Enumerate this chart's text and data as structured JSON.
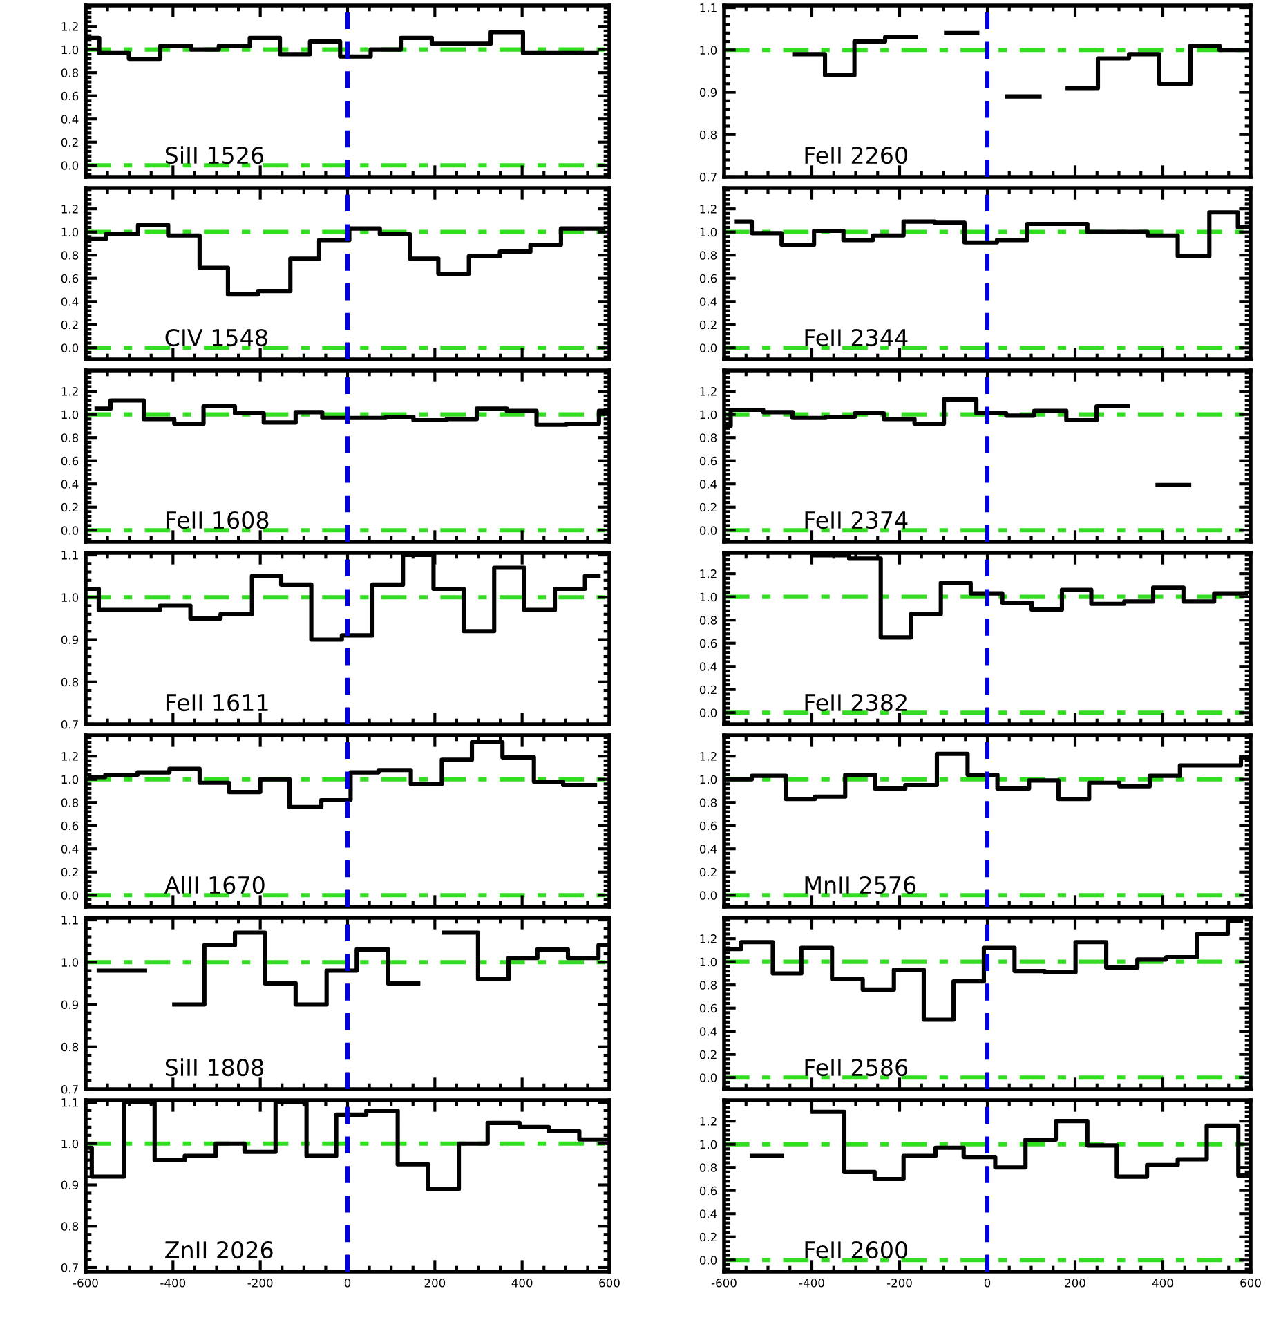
{
  "chart_data": [
    {
      "type": "step",
      "annotations": [
        "SiII 1526"
      ],
      "xlim": [
        -600,
        600
      ],
      "xticks": [
        -600,
        -400,
        -200,
        0,
        200,
        400,
        600
      ],
      "ylim": [
        -0.1,
        1.38
      ],
      "yticks": [
        {
          "value": 0,
          "label": "0.0"
        },
        {
          "value": 0.2,
          "label": "0.2"
        },
        {
          "value": 0.4,
          "label": "0.4"
        },
        {
          "value": 0.6,
          "label": "0.6"
        },
        {
          "value": 0.8,
          "label": "0.8"
        },
        {
          "value": 1,
          "label": "1.0"
        },
        {
          "value": 1.2,
          "label": "1.2"
        }
      ],
      "tick_labels": "y",
      "ref_lines": [
        {
          "axis": "y",
          "value": 1.0,
          "color": "#33dd22",
          "line_style": "dashdot"
        },
        {
          "axis": "y",
          "value": 0.0,
          "color": "#33dd22",
          "line_style": "dashdot"
        },
        {
          "axis": "x",
          "value": 0,
          "color": "#0000dd",
          "line_style": "dashed"
        }
      ],
      "series": [
        {
          "color": "#000000",
          "x": [
            -600,
            -569,
            -501,
            -429,
            -358,
            -295,
            -224,
            -155,
            -86,
            -17,
            53,
            122,
            193,
            328,
            402,
            571
          ],
          "values": [
            1.1,
            0.97,
            0.92,
            1.03,
            1.0,
            1.03,
            1.1,
            0.96,
            1.07,
            0.94,
            1.0,
            1.1,
            1.05,
            1.15,
            0.97,
            0.97
          ]
        }
      ]
    },
    {
      "type": "step",
      "annotations": [
        "FeII 2260"
      ],
      "xlim": [
        -600,
        600
      ],
      "xticks": [
        -600,
        -400,
        -200,
        0,
        200,
        400,
        600
      ],
      "ylim": [
        0.7,
        1.105
      ],
      "yticks": [
        {
          "value": 0.7,
          "label": "0.7"
        },
        {
          "value": 0.8,
          "label": "0.8"
        },
        {
          "value": 0.9,
          "label": "0.9"
        },
        {
          "value": 1,
          "label": "1.0"
        },
        {
          "value": 1.1,
          "label": "1.1"
        }
      ],
      "tick_labels": "y",
      "ref_lines": [
        {
          "axis": "y",
          "value": 1.0,
          "color": "#33dd22",
          "line_style": "dashdot"
        },
        {
          "axis": "x",
          "value": 0,
          "color": "#0000dd",
          "line_style": "dashed"
        }
      ],
      "series": [
        {
          "color": "#000000",
          "x": [
            -440,
            -370,
            -303,
            -233,
            -163,
            -94,
            -23,
            45,
            119,
            183,
            252,
            323,
            392,
            463,
            529,
            592
          ],
          "values": [
            0.99,
            0.94,
            1.02,
            1.03,
            null,
            1.04,
            null,
            0.89,
            null,
            0.91,
            0.98,
            0.99,
            0.92,
            1.01,
            1.0,
            1.0
          ]
        }
      ]
    },
    {
      "type": "step",
      "annotations": [
        "CIV 1548"
      ],
      "xlim": [
        -600,
        600
      ],
      "xticks": [
        -600,
        -400,
        -200,
        0,
        200,
        400,
        600
      ],
      "ylim": [
        -0.1,
        1.38
      ],
      "yticks": [
        {
          "value": 0,
          "label": "0.0"
        },
        {
          "value": 0.2,
          "label": "0.2"
        },
        {
          "value": 0.4,
          "label": "0.4"
        },
        {
          "value": 0.6,
          "label": "0.6"
        },
        {
          "value": 0.8,
          "label": "0.8"
        },
        {
          "value": 1,
          "label": "1.0"
        },
        {
          "value": 1.2,
          "label": "1.2"
        }
      ],
      "tick_labels": "y",
      "ref_lines": [
        {
          "axis": "y",
          "value": 1.0,
          "color": "#33dd22",
          "line_style": "dashdot"
        },
        {
          "axis": "y",
          "value": 0.0,
          "color": "#33dd22",
          "line_style": "dashdot"
        },
        {
          "axis": "x",
          "value": 0,
          "color": "#0000dd",
          "line_style": "dashed"
        }
      ],
      "series": [
        {
          "color": "#000000",
          "x": [
            -600,
            -554,
            -480,
            -411,
            -339,
            -274,
            -205,
            -131,
            -65,
            4,
            74,
            143,
            208,
            278,
            349,
            419,
            489,
            586
          ],
          "values": [
            0.94,
            0.98,
            1.06,
            0.97,
            0.69,
            0.46,
            0.49,
            0.77,
            0.93,
            1.03,
            0.98,
            0.77,
            0.64,
            0.79,
            0.83,
            0.89,
            1.03,
            1.03
          ]
        }
      ]
    },
    {
      "type": "step",
      "annotations": [
        "FeII 2344"
      ],
      "xlim": [
        -600,
        600
      ],
      "xticks": [
        -600,
        -400,
        -200,
        0,
        200,
        400,
        600
      ],
      "ylim": [
        -0.1,
        1.38
      ],
      "yticks": [
        {
          "value": 0,
          "label": "0.0"
        },
        {
          "value": 0.2,
          "label": "0.2"
        },
        {
          "value": 0.4,
          "label": "0.4"
        },
        {
          "value": 0.6,
          "label": "0.6"
        },
        {
          "value": 0.8,
          "label": "0.8"
        },
        {
          "value": 1,
          "label": "1.0"
        },
        {
          "value": 1.2,
          "label": "1.2"
        }
      ],
      "tick_labels": "y",
      "ref_lines": [
        {
          "axis": "y",
          "value": 1.0,
          "color": "#33dd22",
          "line_style": "dashdot"
        },
        {
          "axis": "y",
          "value": 0.0,
          "color": "#33dd22",
          "line_style": "dashdot"
        },
        {
          "axis": "x",
          "value": 0,
          "color": "#0000dd",
          "line_style": "dashed"
        }
      ],
      "series": [
        {
          "color": "#000000",
          "x": [
            -571,
            -537,
            -469,
            -395,
            -328,
            -261,
            -191,
            -120,
            -52,
            22,
            91,
            228,
            365,
            434,
            506,
            571,
            597
          ],
          "values": [
            1.09,
            0.99,
            0.89,
            1.01,
            0.93,
            0.97,
            1.09,
            1.08,
            0.91,
            0.93,
            1.07,
            1.0,
            0.97,
            0.79,
            1.17,
            1.04,
            1.04
          ]
        }
      ]
    },
    {
      "type": "step",
      "annotations": [
        "FeII 1608"
      ],
      "xlim": [
        -600,
        600
      ],
      "xticks": [
        -600,
        -400,
        -200,
        0,
        200,
        400,
        600
      ],
      "ylim": [
        -0.1,
        1.38
      ],
      "yticks": [
        {
          "value": 0,
          "label": "0.0"
        },
        {
          "value": 0.2,
          "label": "0.2"
        },
        {
          "value": 0.4,
          "label": "0.4"
        },
        {
          "value": 0.6,
          "label": "0.6"
        },
        {
          "value": 0.8,
          "label": "0.8"
        },
        {
          "value": 1,
          "label": "1.0"
        },
        {
          "value": 1.2,
          "label": "1.2"
        }
      ],
      "tick_labels": "y",
      "ref_lines": [
        {
          "axis": "y",
          "value": 1.0,
          "color": "#33dd22",
          "line_style": "dashdot"
        },
        {
          "axis": "y",
          "value": 0.0,
          "color": "#33dd22",
          "line_style": "dashdot"
        },
        {
          "axis": "x",
          "value": 0,
          "color": "#0000dd",
          "line_style": "dashed"
        }
      ],
      "series": [
        {
          "color": "#000000",
          "x": [
            -575,
            -543,
            -467,
            -397,
            -330,
            -258,
            -192,
            -119,
            -58,
            88,
            151,
            227,
            296,
            365,
            433,
            502,
            576,
            597
          ],
          "values": [
            1.05,
            1.12,
            0.96,
            0.92,
            1.07,
            1.01,
            0.93,
            1.02,
            0.97,
            0.98,
            0.95,
            0.96,
            1.05,
            1.03,
            0.91,
            0.92,
            1.03,
            1.03
          ]
        }
      ]
    },
    {
      "type": "step",
      "annotations": [
        "FeII 2374"
      ],
      "xlim": [
        -600,
        600
      ],
      "xticks": [
        -600,
        -400,
        -200,
        0,
        200,
        400,
        600
      ],
      "ylim": [
        -0.1,
        1.38
      ],
      "yticks": [
        {
          "value": 0,
          "label": "0.0"
        },
        {
          "value": 0.2,
          "label": "0.2"
        },
        {
          "value": 0.4,
          "label": "0.4"
        },
        {
          "value": 0.6,
          "label": "0.6"
        },
        {
          "value": 0.8,
          "label": "0.8"
        },
        {
          "value": 1,
          "label": "1.0"
        },
        {
          "value": 1.2,
          "label": "1.2"
        }
      ],
      "tick_labels": "y",
      "ref_lines": [
        {
          "axis": "y",
          "value": 1.0,
          "color": "#33dd22",
          "line_style": "dashdot"
        },
        {
          "axis": "y",
          "value": 0.0,
          "color": "#33dd22",
          "line_style": "dashdot"
        },
        {
          "axis": "x",
          "value": 0,
          "color": "#0000dd",
          "line_style": "dashed"
        }
      ],
      "series": [
        {
          "color": "#000000",
          "x": [
            -600,
            -585,
            -511,
            -444,
            -368,
            -302,
            -236,
            -166,
            -99,
            -25,
            43,
            107,
            180,
            249,
            320,
            388,
            460
          ],
          "values": [
            0.9,
            1.04,
            1.02,
            0.97,
            0.98,
            1.01,
            0.96,
            0.92,
            1.13,
            1.01,
            0.99,
            1.03,
            0.95,
            1.07,
            null,
            0.39,
            0.39
          ]
        }
      ]
    },
    {
      "type": "step",
      "annotations": [
        "FeII 1611"
      ],
      "xlim": [
        -600,
        600
      ],
      "xticks": [
        -600,
        -400,
        -200,
        0,
        200,
        400,
        600
      ],
      "ylim": [
        0.7,
        1.105
      ],
      "yticks": [
        {
          "value": 0.7,
          "label": "0.7"
        },
        {
          "value": 0.8,
          "label": "0.8"
        },
        {
          "value": 0.9,
          "label": "0.9"
        },
        {
          "value": 1,
          "label": "1.0"
        },
        {
          "value": 1.1,
          "label": "1.1"
        }
      ],
      "tick_labels": "y",
      "ref_lines": [
        {
          "axis": "y",
          "value": 1.0,
          "color": "#33dd22",
          "line_style": "dashdot"
        },
        {
          "axis": "x",
          "value": 0,
          "color": "#0000dd",
          "line_style": "dashed"
        }
      ],
      "series": [
        {
          "color": "#000000",
          "x": [
            -600,
            -570,
            -497,
            -430,
            -360,
            -291,
            -219,
            -152,
            -83,
            -13,
            57,
            127,
            197,
            266,
            336,
            405,
            475,
            544,
            575
          ],
          "values": [
            1.02,
            0.97,
            0.97,
            0.98,
            0.95,
            0.96,
            1.05,
            1.03,
            0.9,
            0.91,
            1.03,
            1.1,
            1.02,
            0.92,
            1.07,
            0.97,
            1.02,
            1.05,
            1.05
          ]
        }
      ]
    },
    {
      "type": "step",
      "annotations": [
        "FeII 2382"
      ],
      "xlim": [
        -600,
        600
      ],
      "xticks": [
        -600,
        -400,
        -200,
        0,
        200,
        400,
        600
      ],
      "ylim": [
        -0.1,
        1.38
      ],
      "yticks": [
        {
          "value": 0,
          "label": "0.0"
        },
        {
          "value": 0.2,
          "label": "0.2"
        },
        {
          "value": 0.4,
          "label": "0.4"
        },
        {
          "value": 0.6,
          "label": "0.6"
        },
        {
          "value": 0.8,
          "label": "0.8"
        },
        {
          "value": 1,
          "label": "1.0"
        },
        {
          "value": 1.2,
          "label": "1.2"
        }
      ],
      "tick_labels": "y",
      "ref_lines": [
        {
          "axis": "y",
          "value": 1.0,
          "color": "#33dd22",
          "line_style": "dashdot"
        },
        {
          "axis": "y",
          "value": 0.0,
          "color": "#33dd22",
          "line_style": "dashdot"
        },
        {
          "axis": "x",
          "value": 0,
          "color": "#0000dd",
          "line_style": "dashed"
        }
      ],
      "series": [
        {
          "color": "#000000",
          "x": [
            -393,
            -315,
            -243,
            -174,
            -106,
            -38,
            34,
            101,
            170,
            237,
            312,
            378,
            447,
            517,
            589
          ],
          "values": [
            1.36,
            1.33,
            0.65,
            0.85,
            1.12,
            1.03,
            0.95,
            0.89,
            1.06,
            0.94,
            0.96,
            1.08,
            0.96,
            1.03,
            1.03
          ]
        }
      ]
    },
    {
      "type": "step",
      "annotations": [
        "AlII 1670"
      ],
      "xlim": [
        -600,
        600
      ],
      "xticks": [
        -600,
        -400,
        -200,
        0,
        200,
        400,
        600
      ],
      "ylim": [
        -0.1,
        1.38
      ],
      "yticks": [
        {
          "value": 0,
          "label": "0.0"
        },
        {
          "value": 0.2,
          "label": "0.2"
        },
        {
          "value": 0.4,
          "label": "0.4"
        },
        {
          "value": 0.6,
          "label": "0.6"
        },
        {
          "value": 0.8,
          "label": "0.8"
        },
        {
          "value": 1,
          "label": "1.0"
        },
        {
          "value": 1.2,
          "label": "1.2"
        }
      ],
      "tick_labels": "y",
      "ref_lines": [
        {
          "axis": "y",
          "value": 1.0,
          "color": "#33dd22",
          "line_style": "dashdot"
        },
        {
          "axis": "y",
          "value": 0.0,
          "color": "#33dd22",
          "line_style": "dashdot"
        },
        {
          "axis": "x",
          "value": 0,
          "color": "#0000dd",
          "line_style": "dashed"
        }
      ],
      "series": [
        {
          "color": "#000000",
          "x": [
            -589,
            -555,
            -481,
            -408,
            -339,
            -272,
            -200,
            -133,
            -60,
            7,
            71,
            145,
            216,
            285,
            355,
            427,
            494,
            567
          ],
          "values": [
            1.02,
            1.04,
            1.06,
            1.09,
            0.97,
            0.89,
            1.0,
            0.76,
            0.82,
            1.06,
            1.08,
            0.96,
            1.17,
            1.32,
            1.19,
            0.98,
            0.95,
            0.95
          ]
        }
      ]
    },
    {
      "type": "step",
      "annotations": [
        "MnII 2576"
      ],
      "xlim": [
        -600,
        600
      ],
      "xticks": [
        -600,
        -400,
        -200,
        0,
        200,
        400,
        600
      ],
      "ylim": [
        -0.1,
        1.38
      ],
      "yticks": [
        {
          "value": 0,
          "label": "0.0"
        },
        {
          "value": 0.2,
          "label": "0.2"
        },
        {
          "value": 0.4,
          "label": "0.4"
        },
        {
          "value": 0.6,
          "label": "0.6"
        },
        {
          "value": 0.8,
          "label": "0.8"
        },
        {
          "value": 1,
          "label": "1.0"
        },
        {
          "value": 1.2,
          "label": "1.2"
        }
      ],
      "tick_labels": "y",
      "ref_lines": [
        {
          "axis": "y",
          "value": 1.0,
          "color": "#33dd22",
          "line_style": "dashdot"
        },
        {
          "axis": "y",
          "value": 0.0,
          "color": "#33dd22",
          "line_style": "dashdot"
        },
        {
          "axis": "x",
          "value": 0,
          "color": "#0000dd",
          "line_style": "dashed"
        }
      ],
      "series": [
        {
          "color": "#000000",
          "x": [
            -600,
            -537,
            -459,
            -393,
            -324,
            -256,
            -187,
            -115,
            -45,
            23,
            95,
            162,
            232,
            301,
            370,
            439,
            578,
            594
          ],
          "values": [
            1.0,
            1.03,
            0.83,
            0.85,
            1.04,
            0.92,
            0.95,
            1.22,
            1.04,
            0.92,
            0.99,
            0.83,
            0.97,
            0.94,
            1.03,
            1.12,
            1.19,
            1.19
          ]
        }
      ]
    },
    {
      "type": "step",
      "annotations": [
        "SiII 1808"
      ],
      "xlim": [
        -600,
        600
      ],
      "xticks": [
        -600,
        -400,
        -200,
        0,
        200,
        400,
        600
      ],
      "ylim": [
        0.7,
        1.105
      ],
      "yticks": [
        {
          "value": 0.7,
          "label": "0.7"
        },
        {
          "value": 0.8,
          "label": "0.8"
        },
        {
          "value": 0.9,
          "label": "0.9"
        },
        {
          "value": 1,
          "label": "1.0"
        },
        {
          "value": 1.1,
          "label": "1.1"
        }
      ],
      "tick_labels": "y",
      "ref_lines": [
        {
          "axis": "y",
          "value": 1.0,
          "color": "#33dd22",
          "line_style": "dashdot"
        },
        {
          "axis": "x",
          "value": 0,
          "color": "#0000dd",
          "line_style": "dashed"
        }
      ],
      "series": [
        {
          "color": "#000000",
          "x": [
            -570,
            -464,
            -397,
            -328,
            -258,
            -189,
            -119,
            -48,
            21,
            93,
            162,
            221,
            299,
            369,
            435,
            505,
            575,
            594
          ],
          "values": [
            0.98,
            null,
            0.9,
            1.04,
            1.07,
            0.95,
            0.9,
            0.98,
            1.03,
            0.95,
            null,
            1.07,
            0.96,
            1.01,
            1.03,
            1.01,
            1.04,
            1.04
          ]
        }
      ]
    },
    {
      "type": "step",
      "annotations": [
        "FeII 2586"
      ],
      "xlim": [
        -600,
        600
      ],
      "xticks": [
        -600,
        -400,
        -200,
        0,
        200,
        400,
        600
      ],
      "ylim": [
        -0.1,
        1.38
      ],
      "yticks": [
        {
          "value": 0,
          "label": "0.0"
        },
        {
          "value": 0.2,
          "label": "0.2"
        },
        {
          "value": 0.4,
          "label": "0.4"
        },
        {
          "value": 0.6,
          "label": "0.6"
        },
        {
          "value": 0.8,
          "label": "0.8"
        },
        {
          "value": 1,
          "label": "1.0"
        },
        {
          "value": 1.2,
          "label": "1.2"
        }
      ],
      "tick_labels": "y",
      "ref_lines": [
        {
          "axis": "y",
          "value": 1.0,
          "color": "#33dd22",
          "line_style": "dashdot"
        },
        {
          "axis": "y",
          "value": 0.0,
          "color": "#33dd22",
          "line_style": "dashdot"
        },
        {
          "axis": "x",
          "value": 0,
          "color": "#0000dd",
          "line_style": "dashed"
        }
      ],
      "series": [
        {
          "color": "#000000",
          "x": [
            -600,
            -561,
            -489,
            -424,
            -354,
            -284,
            -213,
            -145,
            -77,
            -8,
            62,
            131,
            201,
            271,
            342,
            408,
            478,
            548,
            578
          ],
          "values": [
            1.11,
            1.17,
            0.9,
            1.12,
            0.85,
            0.76,
            0.93,
            0.5,
            0.83,
            1.12,
            0.92,
            0.91,
            1.17,
            0.95,
            1.02,
            1.04,
            1.24,
            1.35,
            1.35
          ]
        }
      ]
    },
    {
      "type": "step",
      "annotations": [
        "ZnII 2026"
      ],
      "xlim": [
        -600,
        600
      ],
      "xticks": [
        -600,
        -400,
        -200,
        0,
        200,
        400,
        600
      ],
      "ylim": [
        0.69,
        1.105
      ],
      "yticks": [
        {
          "value": 0.7,
          "label": "0.7"
        },
        {
          "value": 0.8,
          "label": "0.8"
        },
        {
          "value": 0.9,
          "label": "0.9"
        },
        {
          "value": 1,
          "label": "1.0"
        },
        {
          "value": 1.1,
          "label": "1.1"
        }
      ],
      "ref_lines": [
        {
          "axis": "y",
          "value": 1.0,
          "color": "#33dd22",
          "line_style": "dashdot"
        },
        {
          "axis": "x",
          "value": 0,
          "color": "#0000dd",
          "line_style": "dashed"
        }
      ],
      "series": [
        {
          "color": "#000000",
          "x": [
            -600,
            -586,
            -512,
            -442,
            -373,
            -302,
            -236,
            -165,
            -94,
            -26,
            21,
            43,
            115,
            184,
            255,
            321,
            394,
            461,
            531,
            594
          ],
          "values": [
            0.99,
            0.92,
            1.1,
            0.96,
            0.97,
            1.0,
            0.98,
            1.1,
            0.97,
            1.07,
            1.07,
            1.08,
            0.95,
            0.89,
            1.0,
            1.05,
            1.04,
            1.03,
            1.01,
            1.01
          ]
        }
      ]
    },
    {
      "type": "step",
      "annotations": [
        "FeII 2600"
      ],
      "xlim": [
        -600,
        600
      ],
      "xticks": [
        -600,
        -400,
        -200,
        0,
        200,
        400,
        600
      ],
      "ylim": [
        -0.1,
        1.38
      ],
      "yticks": [
        {
          "value": 0,
          "label": "0.0"
        },
        {
          "value": 0.2,
          "label": "0.2"
        },
        {
          "value": 0.4,
          "label": "0.4"
        },
        {
          "value": 0.6,
          "label": "0.6"
        },
        {
          "value": 0.8,
          "label": "0.8"
        },
        {
          "value": 1,
          "label": "1.0"
        },
        {
          "value": 1.2,
          "label": "1.2"
        }
      ],
      "ref_lines": [
        {
          "axis": "y",
          "value": 1.0,
          "color": "#33dd22",
          "line_style": "dashdot"
        },
        {
          "axis": "y",
          "value": 0.0,
          "color": "#33dd22",
          "line_style": "dashdot"
        },
        {
          "axis": "x",
          "value": 0,
          "color": "#0000dd",
          "line_style": "dashed"
        }
      ],
      "series": [
        {
          "color": "#000000",
          "x": [
            -537,
            -468,
            -398,
            -326,
            -257,
            -191,
            -118,
            -54,
            18,
            87,
            156,
            228,
            295,
            364,
            434,
            500,
            572,
            594
          ],
          "values": [
            0.9,
            null,
            1.28,
            0.76,
            0.7,
            0.9,
            0.97,
            0.89,
            0.8,
            1.04,
            1.2,
            0.99,
            0.72,
            0.82,
            0.87,
            1.16,
            0.73,
            0.73
          ]
        }
      ]
    }
  ]
}
